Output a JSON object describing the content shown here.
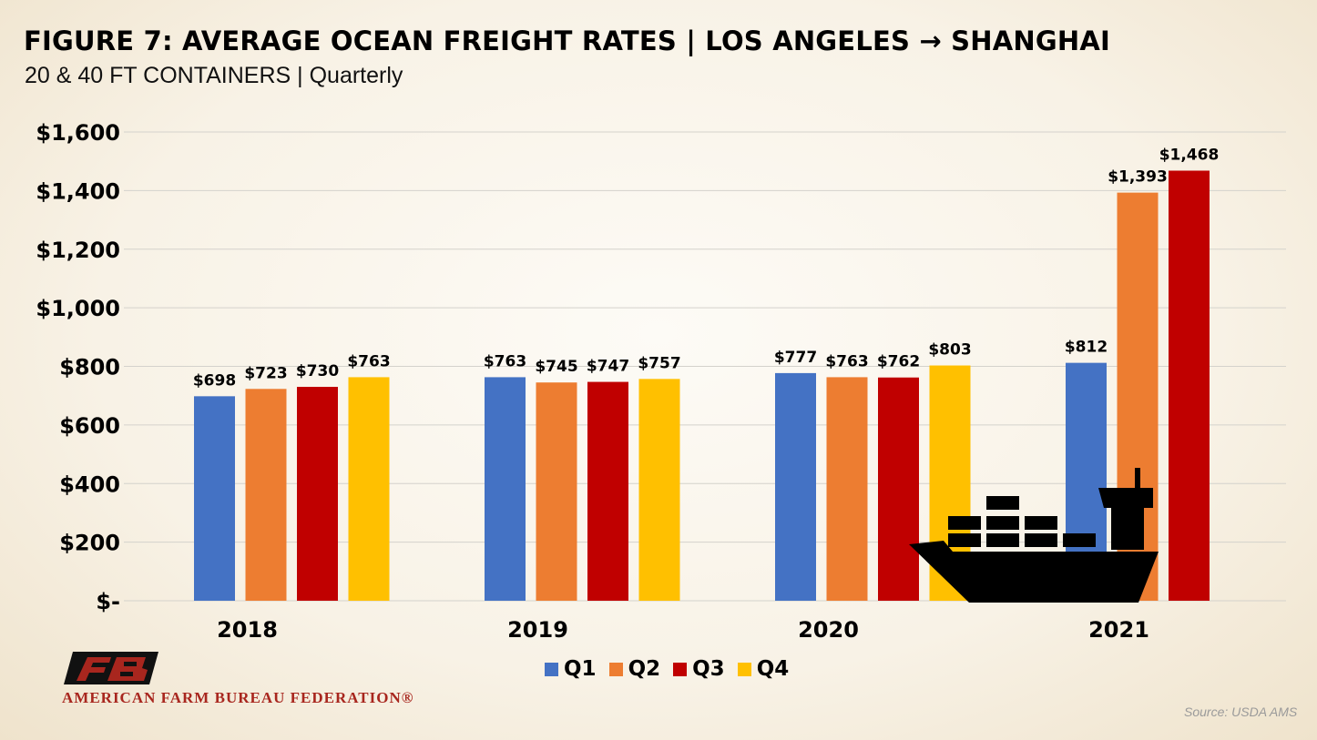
{
  "header": {
    "title": "FIGURE 7: AVERAGE OCEAN FREIGHT RATES | LOS ANGELES → SHANGHAI",
    "subtitle": "20 & 40 FT CONTAINERS | Quarterly"
  },
  "chart_data": {
    "type": "bar",
    "categories": [
      "2018",
      "2019",
      "2020",
      "2021"
    ],
    "series": [
      {
        "name": "Q1",
        "color": "#4472c4",
        "values": [
          698,
          763,
          777,
          812
        ],
        "labels": [
          "$698",
          "$763",
          "$777",
          "$812"
        ]
      },
      {
        "name": "Q2",
        "color": "#ed7d31",
        "values": [
          723,
          745,
          763,
          1393
        ],
        "labels": [
          "$723",
          "$745",
          "$763",
          "$1,393"
        ]
      },
      {
        "name": "Q3",
        "color": "#c00000",
        "values": [
          730,
          747,
          762,
          1468
        ],
        "labels": [
          "$730",
          "$747",
          "$762",
          "$1,468"
        ]
      },
      {
        "name": "Q4",
        "color": "#ffc000",
        "values": [
          763,
          757,
          803,
          null
        ],
        "labels": [
          "$763",
          "$757",
          "$803",
          null
        ]
      }
    ],
    "ylim": [
      0,
      1600
    ],
    "yticks": [
      0,
      200,
      400,
      600,
      800,
      1000,
      1200,
      1400,
      1600
    ],
    "ytick_labels": [
      "$-",
      "$200",
      "$400",
      "$600",
      "$800",
      "$1,000",
      "$1,200",
      "$1,400",
      "$1,600"
    ],
    "grid": true,
    "legend_position": "bottom-center",
    "xlabel": "",
    "ylabel": ""
  },
  "decorations": {
    "ship": "cargo-ship-icon"
  },
  "footer": {
    "org_name": "AMERICAN FARM BUREAU FEDERATION®",
    "logo_letters": "FB",
    "source": "Source: USDA AMS"
  }
}
